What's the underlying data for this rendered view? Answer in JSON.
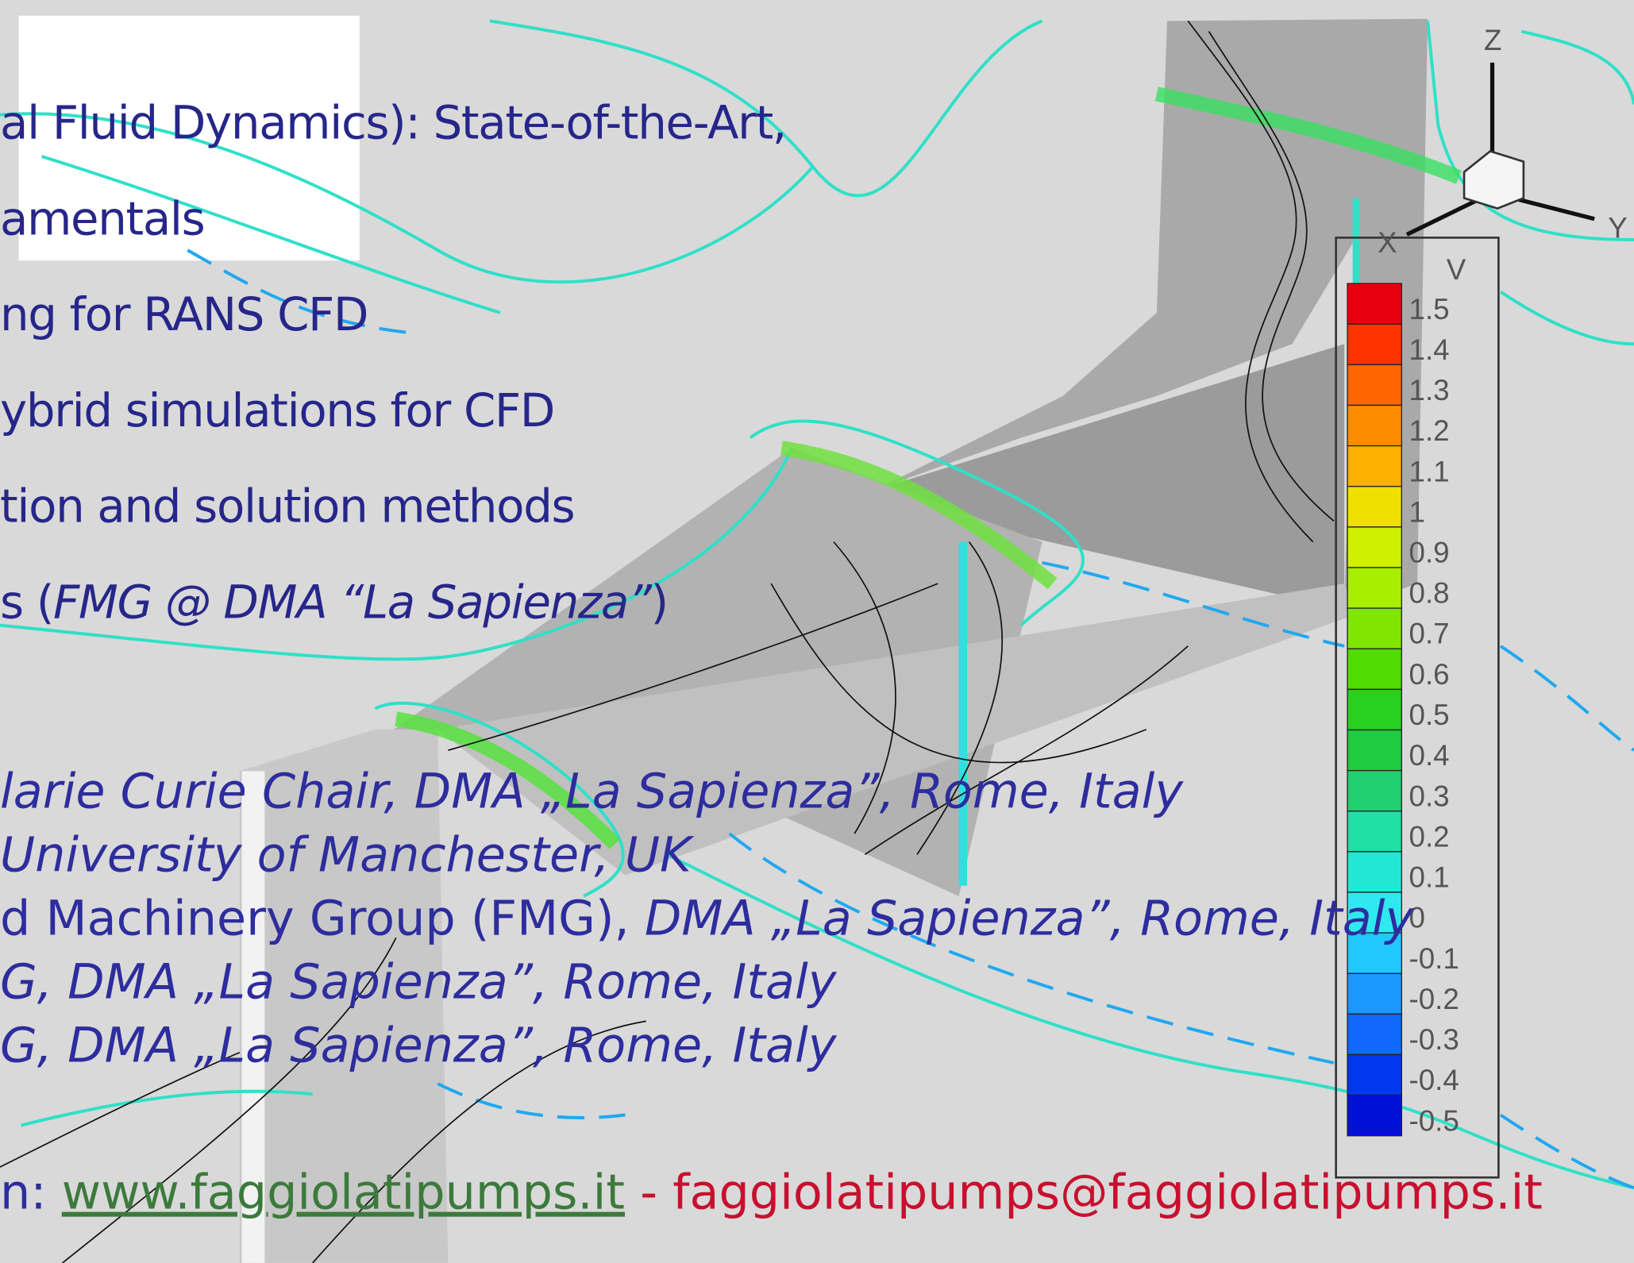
{
  "outline": [
    [
      {
        "text": "al Fluid Dynamics): State-of-the-Art,"
      }
    ],
    [
      {
        "text": "amentals"
      }
    ],
    [
      {
        "text": "ng for RANS CFD"
      }
    ],
    [
      {
        "text": "ybrid simulations for CFD"
      }
    ],
    [
      {
        "text": "tion and solution methods"
      }
    ],
    [
      {
        "text": "s ("
      },
      {
        "text": "FMG @ DMA “La Sapienza”",
        "italic": true
      },
      {
        "text": ")"
      }
    ]
  ],
  "authors": [
    [
      {
        "text": "larie Curie Chair, DMA „La Sapienza”,  Rome, Italy",
        "italic": true
      }
    ],
    [
      {
        "text": "University of Manchester, UK",
        "italic": true
      }
    ],
    [
      {
        "text": "d Machinery Group (FMG), "
      },
      {
        "text": "DMA „La Sapienza”, Rome, Italy",
        "italic": true
      }
    ],
    [
      {
        "text": "G, DMA „La Sapienza”, Rome, Italy",
        "italic": true
      }
    ],
    [
      {
        "text": "G, DMA „La Sapienza”, Rome, Italy",
        "italic": true
      }
    ]
  ],
  "footer": {
    "prefix": "n: ",
    "link": "www.faggiolatipumps.it",
    "separator": " - ",
    "email": "faggiolatipumps@faggiolatipumps.it"
  },
  "colorbar": {
    "title": "V",
    "labels": [
      "1.5",
      "1.4",
      "1.3",
      "1.2",
      "1.1",
      "1",
      "0.9",
      "0.8",
      "0.7",
      "0.6",
      "0.5",
      "0.4",
      "0.3",
      "0.2",
      "0.1",
      "0",
      "-0.1",
      "-0.2",
      "-0.3",
      "-0.4",
      "-0.5"
    ]
  },
  "axes": {
    "z": "Z",
    "x": "X",
    "y": "Y"
  }
}
